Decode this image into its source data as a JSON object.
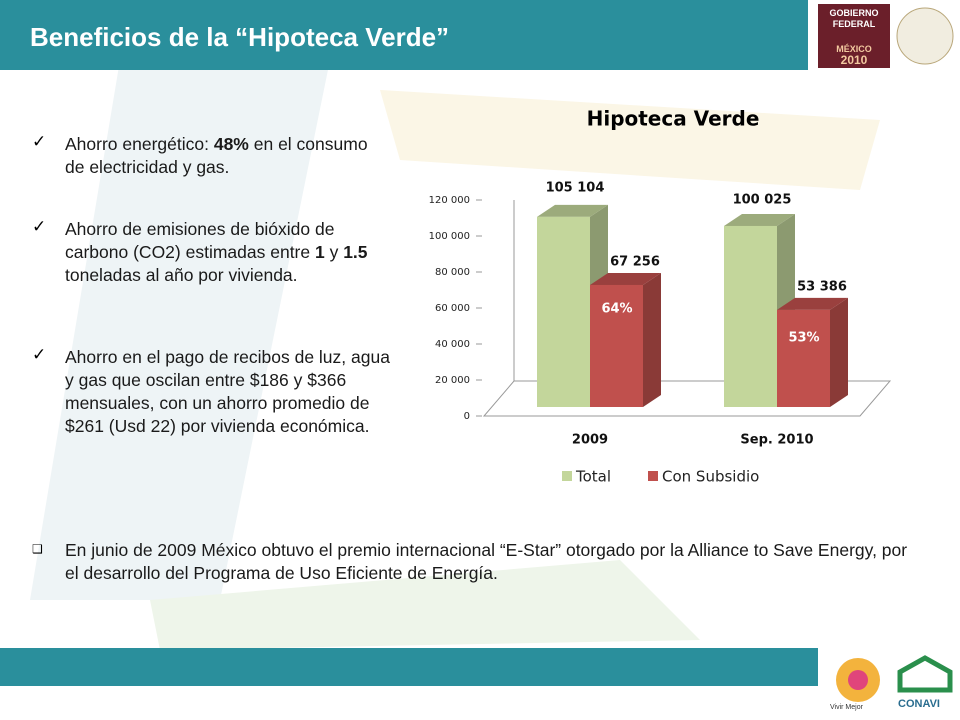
{
  "header": {
    "title": "Beneficios de la “Hipoteca Verde”"
  },
  "logos": {
    "top_right": [
      "Gobierno",
      "Federal",
      "MÉXICO",
      "2010"
    ],
    "bottom_right": [
      "Vivir Mejor",
      "CONAVI"
    ]
  },
  "bullets": [
    {
      "runs": [
        {
          "text": "Ahorro energético: "
        },
        {
          "text": "48%",
          "bold": true
        },
        {
          "text": " en el consumo de electricidad y gas."
        }
      ]
    },
    {
      "runs": [
        {
          "text": "Ahorro de emisiones de bióxido de carbono (CO2) estimadas entre "
        },
        {
          "text": "1",
          "bold": true
        },
        {
          "text": " y "
        },
        {
          "text": "1.5",
          "bold": true
        },
        {
          "text": " toneladas al año por vivienda."
        }
      ]
    },
    {
      "runs": [
        {
          "text": "Ahorro en el pago de recibos de luz, agua y gas que oscilan entre $186 y $366 mensuales, con un ahorro promedio de $261  (Usd 22)  por  vivienda económica."
        }
      ]
    }
  ],
  "note": "En junio de 2009 México obtuvo el premio internacional “E-Star” otorgado por la Alliance to Save Energy, por el desarrollo del Programa de  Uso Eficiente de Energía.",
  "chart_data": {
    "type": "bar3d",
    "title": "Hipoteca Verde",
    "categories": [
      "2009",
      "Sep.  2010"
    ],
    "series": [
      {
        "name": "Total",
        "color": "#c3d69b",
        "values": [
          105104,
          100025
        ],
        "value_labels": [
          "105 104",
          "100 025"
        ]
      },
      {
        "name": "Con Subsidio",
        "color": "#c0504d",
        "values": [
          67256,
          53386
        ],
        "value_labels": [
          "67 256",
          "53 386"
        ],
        "annotations": [
          "64%",
          "53%"
        ]
      }
    ],
    "ylim": [
      0,
      120000
    ],
    "yticks": [
      0,
      {
        "value": 20000,
        "label": "20 000"
      },
      {
        "value": 40000,
        "label": "40 000"
      },
      {
        "value": 60000,
        "label": "60 000"
      },
      {
        "value": 80000,
        "label": "80 000"
      },
      {
        "value": 100000,
        "label": "100 000"
      },
      {
        "value": 120000,
        "label": "120 000"
      }
    ],
    "grid": false,
    "legend": "bottom"
  }
}
